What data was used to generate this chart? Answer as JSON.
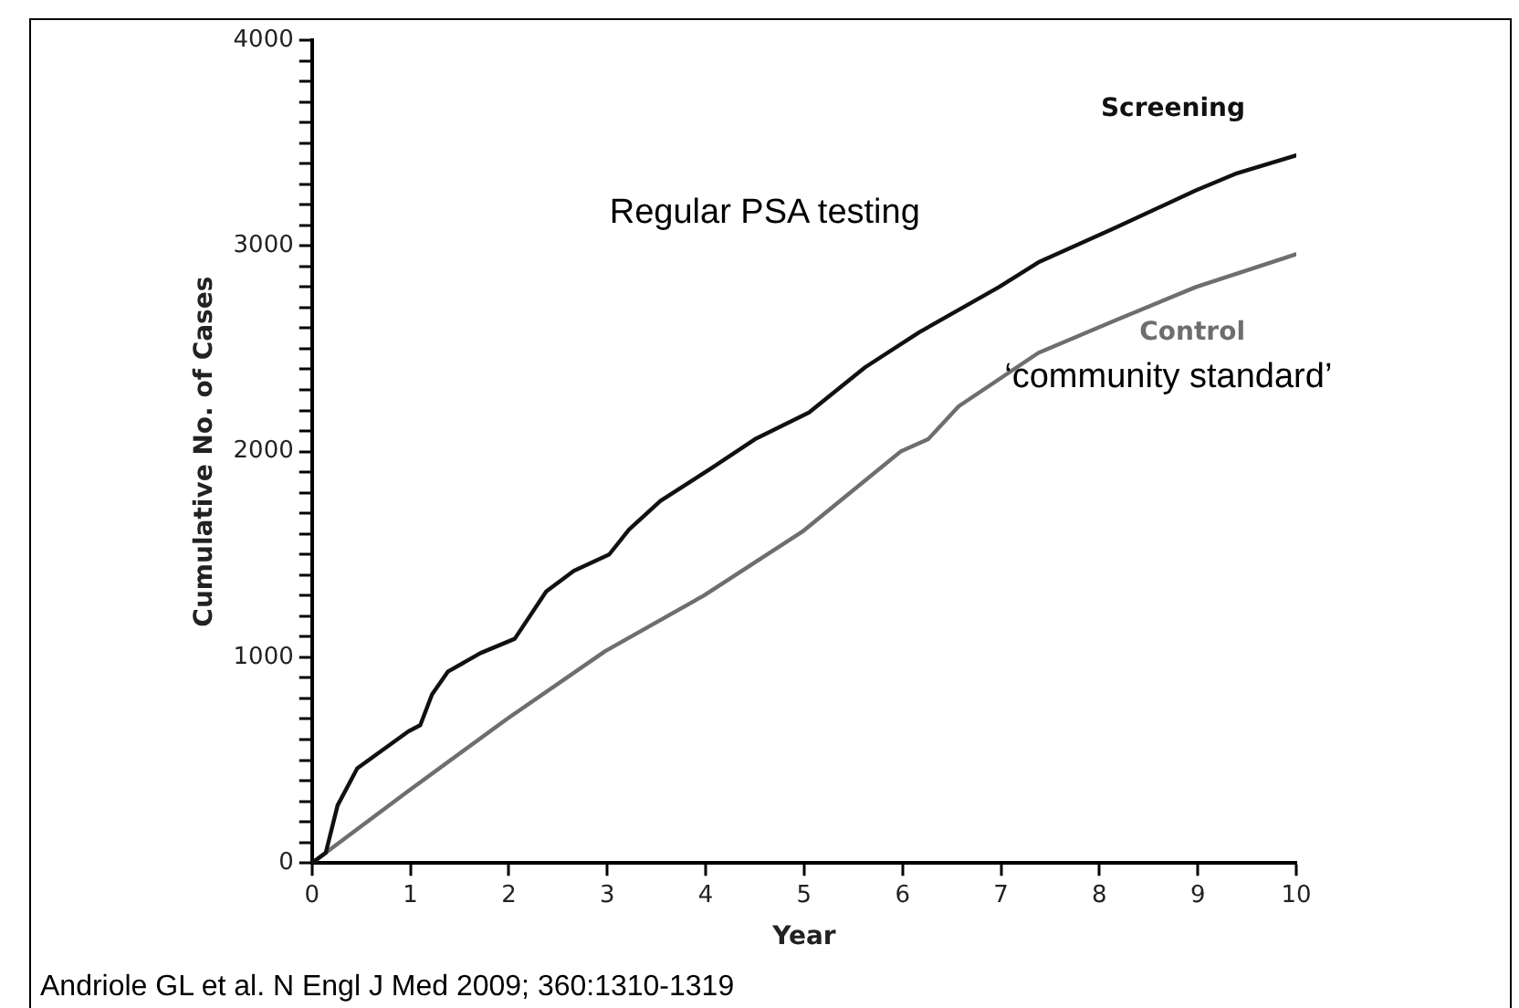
{
  "chart_data": {
    "type": "line",
    "xlabel": "Year",
    "ylabel": "Cumulative No. of Cases",
    "xlim": [
      0,
      10
    ],
    "xticks": [
      0,
      1,
      2,
      3,
      4,
      5,
      6,
      7,
      8,
      9,
      10
    ],
    "ylim": [
      0,
      4000
    ],
    "yticks": [
      0,
      {
        "value": 100,
        "label": null
      },
      {
        "value": 200,
        "label": null
      },
      {
        "value": 300,
        "label": null
      },
      {
        "value": 400,
        "label": null
      },
      {
        "value": 500,
        "label": null
      },
      {
        "value": 600,
        "label": null
      },
      {
        "value": 700,
        "label": null
      },
      {
        "value": 800,
        "label": null
      },
      {
        "value": 900,
        "label": null
      },
      1000,
      {
        "value": 1100,
        "label": null
      },
      {
        "value": 1200,
        "label": null
      },
      {
        "value": 1300,
        "label": null
      },
      {
        "value": 1400,
        "label": null
      },
      {
        "value": 1500,
        "label": null
      },
      {
        "value": 1600,
        "label": null
      },
      {
        "value": 1700,
        "label": null
      },
      {
        "value": 1800,
        "label": null
      },
      {
        "value": 1900,
        "label": null
      },
      2000,
      {
        "value": 2100,
        "label": null
      },
      {
        "value": 2200,
        "label": null
      },
      {
        "value": 2300,
        "label": null
      },
      {
        "value": 2400,
        "label": null
      },
      {
        "value": 2500,
        "label": null
      },
      {
        "value": 2600,
        "label": null
      },
      {
        "value": 2700,
        "label": null
      },
      {
        "value": 2800,
        "label": null
      },
      {
        "value": 2900,
        "label": null
      },
      3000,
      {
        "value": 3100,
        "label": null
      },
      {
        "value": 3200,
        "label": null
      },
      {
        "value": 3300,
        "label": null
      },
      {
        "value": 3400,
        "label": null
      },
      {
        "value": 3500,
        "label": null
      },
      {
        "value": 3600,
        "label": null
      },
      {
        "value": 3700,
        "label": null
      },
      {
        "value": 3800,
        "label": null
      },
      {
        "value": 3900,
        "label": null
      },
      4000
    ],
    "grid": false,
    "legend": false,
    "marker": "none",
    "line_style": "solid",
    "series": [
      {
        "name": "Screening",
        "color": "#111111",
        "x": [
          0,
          0.14,
          0.26,
          0.46,
          0.98,
          1.1,
          1.22,
          1.38,
          1.71,
          2.06,
          2.38,
          2.66,
          3.02,
          3.22,
          3.54,
          4.06,
          4.5,
          5.05,
          5.62,
          6.17,
          6.98,
          7.38,
          8.17,
          8.98,
          9.38,
          10
        ],
        "values": [
          0,
          50,
          280,
          460,
          640,
          670,
          820,
          930,
          1020,
          1090,
          1320,
          1420,
          1500,
          1620,
          1760,
          1920,
          2060,
          2190,
          2410,
          2580,
          2800,
          2920,
          3090,
          3270,
          3350,
          3440
        ]
      },
      {
        "name": "Control",
        "color": "#6e6e6e",
        "x": [
          0,
          0.98,
          1.98,
          2.98,
          3.98,
          4.98,
          5.98,
          6.26,
          6.57,
          7.38,
          8.17,
          8.98,
          10
        ],
        "values": [
          0,
          350,
          700,
          1030,
          1300,
          1610,
          2000,
          2060,
          2220,
          2480,
          2640,
          2800,
          2960
        ]
      }
    ],
    "annotations": [
      "Regular PSA testing",
      "‘community standard’",
      "Andriole GL et al. N Engl J Med 2009; 360:1310-1319"
    ]
  }
}
